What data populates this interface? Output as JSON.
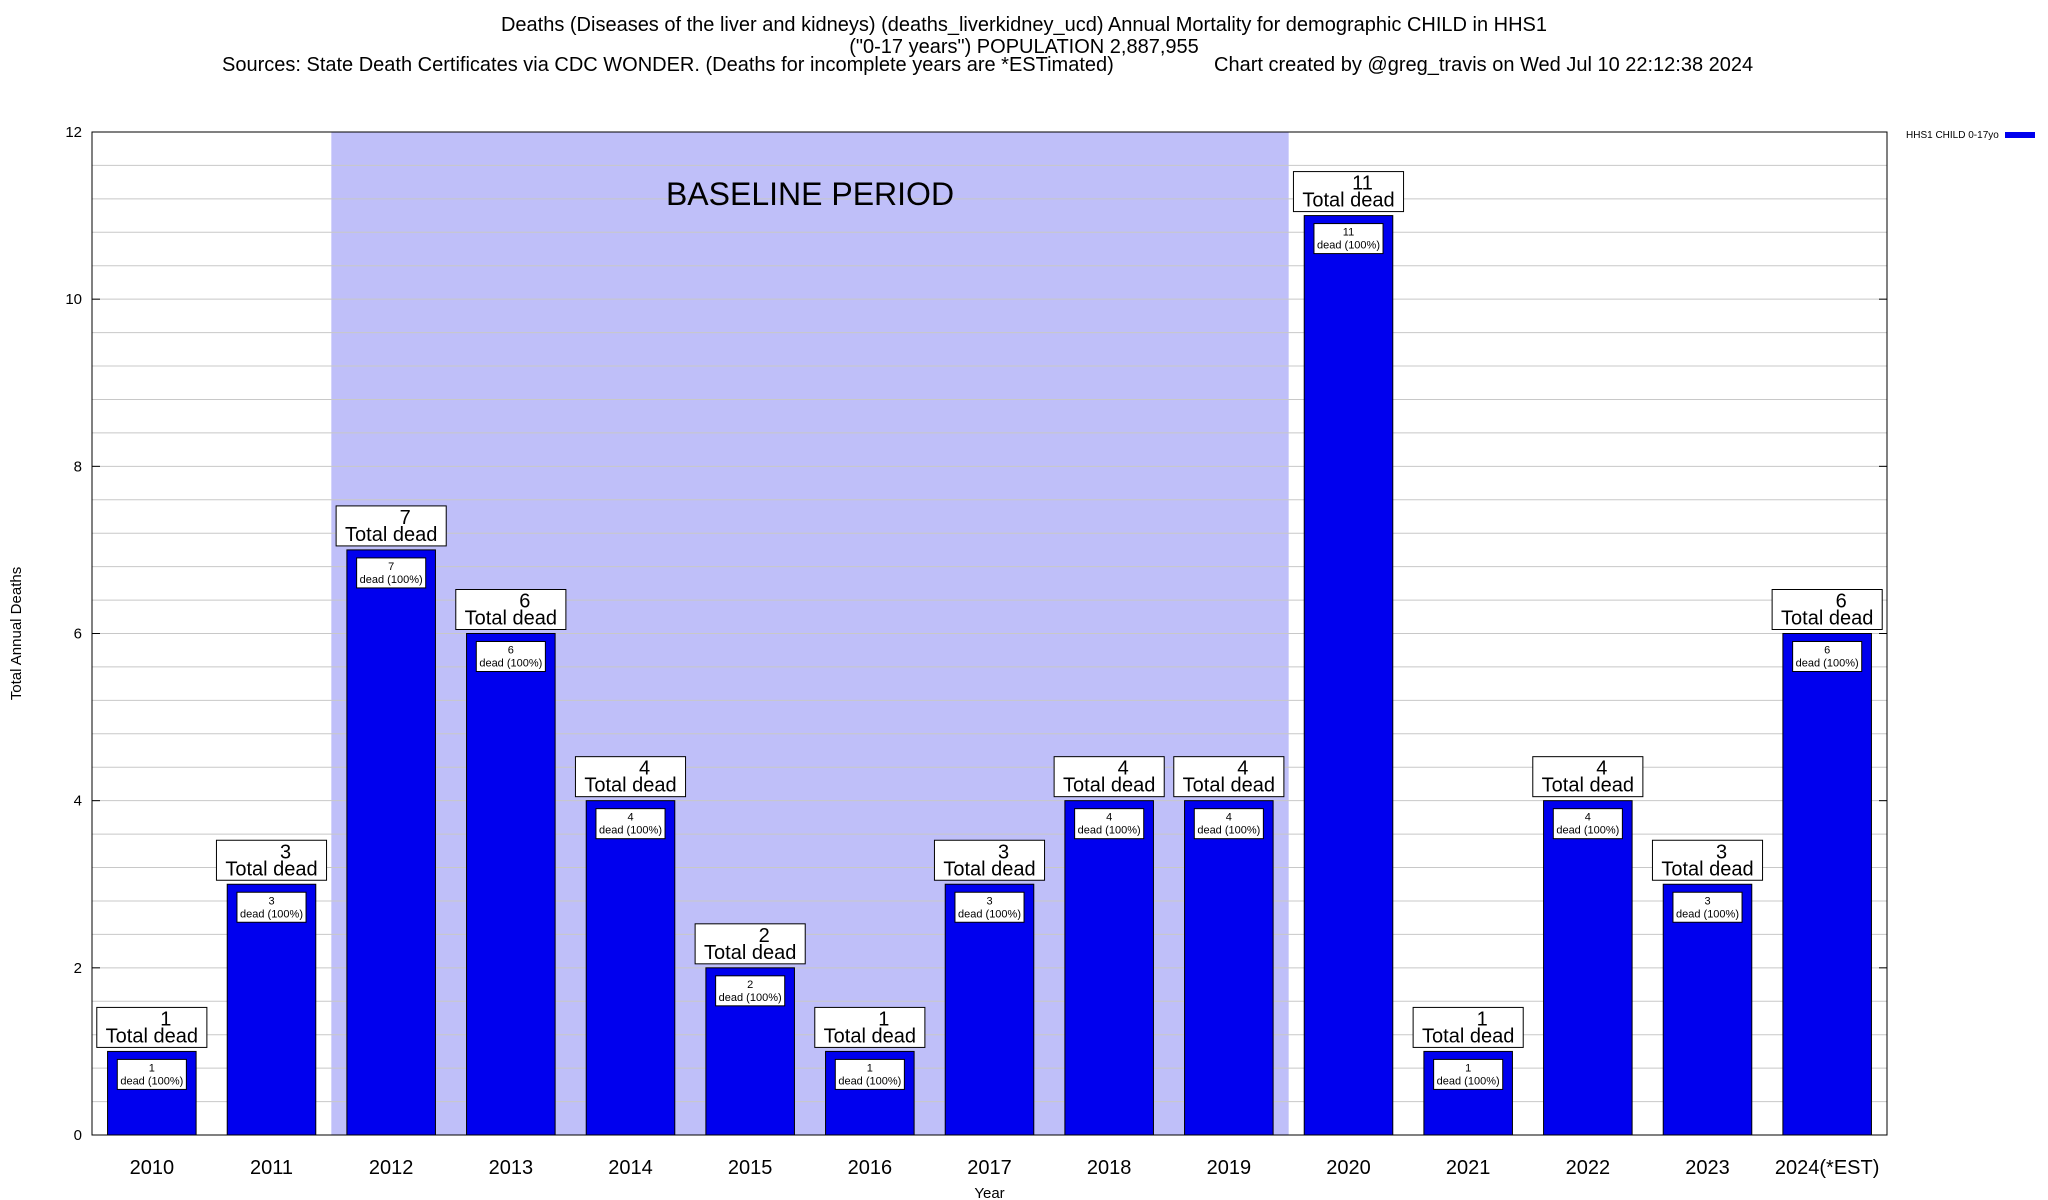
{
  "title_line1": "Deaths (Diseases of the liver and kidneys) (deaths_liverkidney_ucd) Annual Mortality for demographic CHILD in HHS1",
  "title_line2": "(\"0-17 years\") POPULATION 2,887,955",
  "subtitle_sources": "Sources: State Death Certificates via CDC WONDER. (Deaths for incomplete years are *ESTimated)",
  "subtitle_credit": "Chart created by @greg_travis on Wed Jul 10 22:12:38 2024",
  "legend_label": "HHS1 CHILD 0-17yo",
  "colors": {
    "bar": "#0000ee",
    "baseline": "#bfbff9",
    "grid": "#c8c8c8"
  },
  "chart_data": {
    "type": "bar",
    "categories": [
      "2010",
      "2011",
      "2012",
      "2013",
      "2014",
      "2015",
      "2016",
      "2017",
      "2018",
      "2019",
      "2020",
      "2021",
      "2022",
      "2023",
      "2024(*EST)"
    ],
    "series": [
      {
        "name": "HHS1 CHILD 0-17yo",
        "values": [
          1,
          3,
          7,
          6,
          4,
          2,
          1,
          3,
          4,
          4,
          11,
          1,
          4,
          3,
          6
        ]
      }
    ],
    "xlabel": "Year",
    "ylabel": "Total Annual Deaths",
    "ylim": [
      0,
      12
    ],
    "yticks": [
      0,
      2,
      4,
      6,
      8,
      10,
      12
    ],
    "grid": true,
    "legend_position": "top-right",
    "total_label_word": "Total dead",
    "inner_label_word": "dead (100%)",
    "baseline_period": {
      "label": "BASELINE PERIOD",
      "from": "2012",
      "to": "2019"
    }
  }
}
